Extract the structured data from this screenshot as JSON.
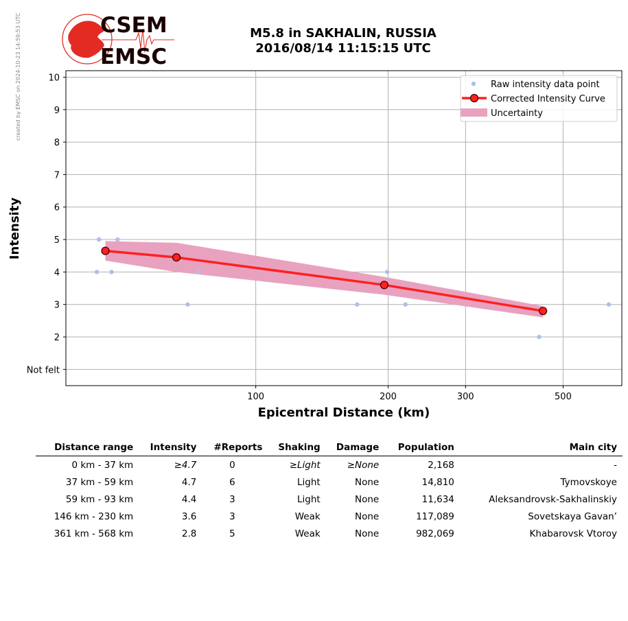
{
  "credit": "created by EMSC on 2024-10-23 14:59:53 UTC",
  "logo": {
    "line1": "CSEM",
    "line2": "EMSC",
    "red": "#e32b24",
    "dark": "#1a0000"
  },
  "title": {
    "line1": "M5.8 in SAKHALIN, RUSSIA",
    "line2": "2016/08/14 11:15:15 UTC"
  },
  "colors": {
    "raw": "#aebfe8",
    "curve": "#ff2020",
    "marker_edge": "#3a0000",
    "uncertainty": "#e8a2bf",
    "grid": "#b0b0b0"
  },
  "chart_data": {
    "type": "scatter",
    "xlabel": "Epicentral Distance (km)",
    "ylabel": "Intensity",
    "xscale": "log",
    "xlim": [
      37,
      680
    ],
    "ylim": [
      0.5,
      10.2
    ],
    "x_ticks": [
      100,
      200,
      300,
      500
    ],
    "y_ticks": [
      1,
      2,
      3,
      4,
      5,
      6,
      7,
      8,
      9,
      10
    ],
    "y_tick_labels": [
      "Not felt",
      "2",
      "3",
      "4",
      "5",
      "6",
      "7",
      "8",
      "9",
      "10"
    ],
    "grid": true,
    "legend": "top-right",
    "series": [
      {
        "name": "Raw intensity data point",
        "kind": "scatter",
        "x": [
          44,
          44,
          43.5,
          47,
          48.5,
          70,
          74,
          170,
          199,
          219,
          441,
          635
        ],
        "y": [
          5,
          5,
          4,
          4,
          5,
          3,
          4,
          3,
          4,
          3,
          2,
          3
        ]
      },
      {
        "name": "Corrected Intensity Curve",
        "kind": "line",
        "x": [
          45.5,
          66,
          196,
          450
        ],
        "y": [
          4.65,
          4.45,
          3.6,
          2.8
        ]
      },
      {
        "name": "Uncertainty",
        "kind": "band",
        "x": [
          45.5,
          66,
          196,
          450
        ],
        "upper": [
          4.95,
          4.9,
          3.85,
          2.95
        ],
        "lower": [
          4.35,
          4.0,
          3.3,
          2.6
        ]
      }
    ]
  },
  "table": {
    "headers": [
      "Distance range",
      "Intensity",
      "#Reports",
      "Shaking",
      "Damage",
      "Population",
      "Main city"
    ],
    "rows": [
      {
        "range": "0 km -   37 km",
        "intensity": "≥4.7",
        "reports": "0",
        "shaking": "≥Light",
        "damage": "≥None",
        "population": "2,168",
        "city": "-",
        "italic": true
      },
      {
        "range": "37 km -   59 km",
        "intensity": "4.7",
        "reports": "6",
        "shaking": "Light",
        "damage": "None",
        "population": "14,810",
        "city": "Tymovskoye",
        "italic": false
      },
      {
        "range": "59 km -   93 km",
        "intensity": "4.4",
        "reports": "3",
        "shaking": "Light",
        "damage": "None",
        "population": "11,634",
        "city": "Aleksandrovsk-Sakhalinskiy",
        "italic": false
      },
      {
        "range": "146 km -  230 km",
        "intensity": "3.6",
        "reports": "3",
        "shaking": "Weak",
        "damage": "None",
        "population": "117,089",
        "city": "Sovetskaya Gavan’",
        "italic": false
      },
      {
        "range": "361 km -  568 km",
        "intensity": "2.8",
        "reports": "5",
        "shaking": "Weak",
        "damage": "None",
        "population": "982,069",
        "city": "Khabarovsk Vtoroy",
        "italic": false
      }
    ]
  }
}
